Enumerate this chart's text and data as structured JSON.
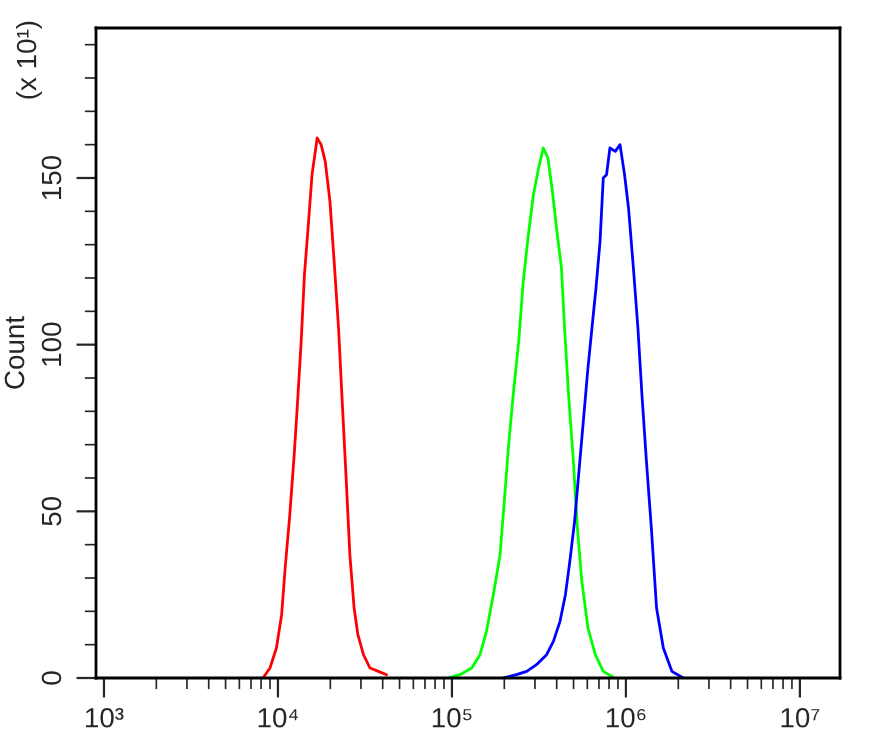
{
  "chart_data": {
    "type": "line",
    "ylabel": "Count",
    "annotations": [
      "(x 10¹)"
    ],
    "log": "x",
    "xlim": [
      900,
      17000000
    ],
    "ylim": [
      0,
      195
    ],
    "xticks": [
      {
        "value": 1000,
        "label": "10³"
      },
      {
        "value": 2000,
        "label": null
      },
      {
        "value": 3000,
        "label": null
      },
      {
        "value": 4000,
        "label": null
      },
      {
        "value": 5000,
        "label": null
      },
      {
        "value": 6000,
        "label": null
      },
      {
        "value": 7000,
        "label": null
      },
      {
        "value": 8000,
        "label": null
      },
      {
        "value": 9000,
        "label": null
      },
      {
        "value": 10000,
        "label": "10⁴"
      },
      {
        "value": 20000,
        "label": null
      },
      {
        "value": 30000,
        "label": null
      },
      {
        "value": 40000,
        "label": null
      },
      {
        "value": 50000,
        "label": null
      },
      {
        "value": 60000,
        "label": null
      },
      {
        "value": 70000,
        "label": null
      },
      {
        "value": 80000,
        "label": null
      },
      {
        "value": 90000,
        "label": null
      },
      {
        "value": 100000,
        "label": "10⁵"
      },
      {
        "value": 200000,
        "label": null
      },
      {
        "value": 300000,
        "label": null
      },
      {
        "value": 400000,
        "label": null
      },
      {
        "value": 500000,
        "label": null
      },
      {
        "value": 600000,
        "label": null
      },
      {
        "value": 700000,
        "label": null
      },
      {
        "value": 800000,
        "label": null
      },
      {
        "value": 900000,
        "label": null
      },
      {
        "value": 1000000,
        "label": "10⁶"
      },
      {
        "value": 2000000,
        "label": null
      },
      {
        "value": 3000000,
        "label": null
      },
      {
        "value": 4000000,
        "label": null
      },
      {
        "value": 5000000,
        "label": null
      },
      {
        "value": 6000000,
        "label": null
      },
      {
        "value": 7000000,
        "label": null
      },
      {
        "value": 8000000,
        "label": null
      },
      {
        "value": 9000000,
        "label": null
      },
      {
        "value": 10000000,
        "label": "10⁷"
      }
    ],
    "yticks": [
      0,
      {
        "value": 10,
        "label": null
      },
      {
        "value": 20,
        "label": null
      },
      {
        "value": 30,
        "label": null
      },
      {
        "value": 40,
        "label": null
      },
      50,
      {
        "value": 60,
        "label": null
      },
      {
        "value": 70,
        "label": null
      },
      {
        "value": 80,
        "label": null
      },
      {
        "value": 90,
        "label": null
      },
      100,
      {
        "value": 110,
        "label": null
      },
      {
        "value": 120,
        "label": null
      },
      {
        "value": 130,
        "label": null
      },
      {
        "value": 140,
        "label": null
      },
      150,
      {
        "value": 160,
        "label": null
      },
      {
        "value": 170,
        "label": null
      },
      {
        "value": 180,
        "label": null
      },
      {
        "value": 190,
        "label": null
      }
    ],
    "grid": false,
    "marker": "none",
    "line_style": "solid",
    "series": [
      {
        "color": "#ff0000",
        "x": [
          8200,
          9000,
          9800,
          10500,
          11000,
          11700,
          12400,
          12900,
          13600,
          14200,
          14900,
          15700,
          16200,
          16800,
          17700,
          18700,
          19900,
          21100,
          22300,
          23300,
          24600,
          25900,
          27400,
          28800,
          31000,
          33800,
          37800,
          42100
        ],
        "values": [
          0,
          3,
          9,
          19,
          33,
          49,
          67,
          81,
          101,
          121,
          135,
          151,
          156,
          162,
          160,
          155,
          143,
          124,
          105,
          85,
          61,
          37,
          21,
          13,
          7,
          3,
          2,
          1
        ]
      },
      {
        "color": "#00ff00",
        "x": [
          94800,
          111000,
          130000,
          145000,
          158000,
          173000,
          189000,
          200000,
          211000,
          225000,
          242000,
          257000,
          275000,
          294000,
          315000,
          335000,
          356000,
          376000,
          399000,
          426000,
          444000,
          468000,
          499000,
          526000,
          558000,
          605000,
          667000,
          741000,
          859000
        ],
        "values": [
          0,
          1,
          3,
          7,
          14,
          25,
          37,
          53,
          69,
          85,
          101,
          119,
          133,
          145,
          153,
          159,
          156,
          147,
          135,
          123,
          105,
          85,
          65,
          45,
          29,
          15,
          7,
          2,
          0
        ]
      },
      {
        "color": "#0000ff",
        "x": [
          197000,
          235000,
          269000,
          306000,
          350000,
          383000,
          418000,
          449000,
          476000,
          507000,
          535000,
          569000,
          605000,
          638000,
          673000,
          710000,
          741000,
          774000,
          809000,
          869000,
          925000,
          982000,
          1035000,
          1104000,
          1172000,
          1236000,
          1312000,
          1400000,
          1500000,
          1641000,
          1837000,
          2138000
        ],
        "values": [
          0,
          1,
          2,
          4,
          7,
          11,
          17,
          25,
          35,
          47,
          61,
          77,
          93,
          105,
          117,
          131,
          150,
          151,
          159,
          158,
          160,
          151,
          141,
          123,
          105,
          85,
          65,
          45,
          21,
          9,
          2,
          0
        ]
      }
    ]
  }
}
